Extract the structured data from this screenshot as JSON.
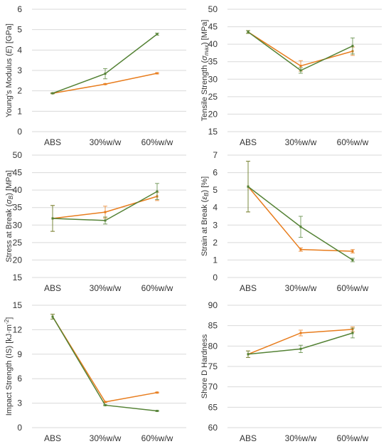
{
  "colors": {
    "series_a": "#e87d1e",
    "series_b": "#548235",
    "grid": "#d9d9d9",
    "text": "#333333"
  },
  "chart_data": [
    {
      "type": "line",
      "ylabel_main": "Young's Modulus (",
      "ylabel_italic": "E",
      "ylabel_end": ") [GPa]",
      "categories": [
        "ABS",
        "30%w/w",
        "60%w/w"
      ],
      "ylim": [
        0,
        6
      ],
      "yticks": [
        0,
        1,
        2,
        3,
        4,
        5,
        6
      ],
      "grid": true,
      "series": [
        {
          "color": "#e87d1e",
          "values": [
            1.88,
            2.33,
            2.86
          ],
          "errors": [
            0.02,
            0.02,
            0.03
          ]
        },
        {
          "color": "#548235",
          "values": [
            1.88,
            2.84,
            4.78
          ],
          "errors": [
            0.02,
            0.25,
            0.05
          ]
        }
      ]
    },
    {
      "type": "line",
      "ylabel_main": "Tensile Strength (",
      "ylabel_italic": "σ",
      "ylabel_sub": "max",
      "ylabel_end": ") [MPa]",
      "categories": [
        "ABS",
        "30%w/w",
        "60%w/w"
      ],
      "ylim": [
        15,
        50
      ],
      "yticks": [
        15,
        20,
        25,
        30,
        35,
        40,
        45,
        50
      ],
      "grid": true,
      "series": [
        {
          "color": "#e87d1e",
          "values": [
            43.5,
            33.8,
            38.0
          ],
          "errors": [
            0.4,
            1.5,
            1.2
          ]
        },
        {
          "color": "#548235",
          "values": [
            43.5,
            32.5,
            39.5
          ],
          "errors": [
            0.4,
            0.8,
            2.3
          ]
        }
      ]
    },
    {
      "type": "line",
      "ylabel_main": "Stress at Break (",
      "ylabel_italic": "σ",
      "ylabel_sub": "B",
      "ylabel_end": ") [MPa]",
      "categories": [
        "ABS",
        "30%w/w",
        "60%w/w"
      ],
      "ylim": [
        15,
        50
      ],
      "yticks": [
        15,
        20,
        25,
        30,
        35,
        40,
        45,
        50
      ],
      "grid": true,
      "series": [
        {
          "color": "#e87d1e",
          "values": [
            31.9,
            33.7,
            38.2
          ],
          "errors": [
            3.7,
            1.7,
            1.2
          ]
        },
        {
          "color": "#548235",
          "values": [
            31.9,
            31.3,
            39.6
          ],
          "errors": [
            3.7,
            1.0,
            2.3
          ]
        }
      ]
    },
    {
      "type": "line",
      "ylabel_main": "Strain at Break (",
      "ylabel_italic": "ε",
      "ylabel_sub": "B",
      "ylabel_end": ") [%]",
      "categories": [
        "ABS",
        "30%w/w",
        "60%w/w"
      ],
      "ylim": [
        0,
        7
      ],
      "yticks": [
        0,
        1,
        2,
        3,
        4,
        5,
        6,
        7
      ],
      "grid": true,
      "series": [
        {
          "color": "#e87d1e",
          "values": [
            5.2,
            1.6,
            1.5
          ],
          "errors": [
            1.45,
            0.1,
            0.1
          ]
        },
        {
          "color": "#548235",
          "values": [
            5.2,
            2.9,
            1.0
          ],
          "errors": [
            1.45,
            0.6,
            0.1
          ]
        }
      ]
    },
    {
      "type": "line",
      "ylabel_main": "Impact Strength (IS) [kJ·m",
      "ylabel_sup": "-2",
      "ylabel_end": "]",
      "categories": [
        "ABS",
        "30%w/w",
        "60%w/w"
      ],
      "ylim": [
        0,
        15
      ],
      "yticks": [
        0,
        3,
        6,
        9,
        12,
        15
      ],
      "grid": true,
      "series": [
        {
          "color": "#e87d1e",
          "values": [
            13.6,
            3.15,
            4.3
          ],
          "errors": [
            0.3,
            0.05,
            0.05
          ]
        },
        {
          "color": "#548235",
          "values": [
            13.6,
            2.75,
            2.05
          ],
          "errors": [
            0.3,
            0.05,
            0.05
          ]
        }
      ]
    },
    {
      "type": "line",
      "ylabel_main": "Shore D Hardness",
      "categories": [
        "ABS",
        "30%w/w",
        "60%w/w"
      ],
      "ylim": [
        60,
        90
      ],
      "yticks": [
        60,
        65,
        70,
        75,
        80,
        85,
        90
      ],
      "grid": true,
      "series": [
        {
          "color": "#e87d1e",
          "values": [
            78.0,
            83.2,
            84.1
          ],
          "errors": [
            0.8,
            0.7,
            0.6
          ]
        },
        {
          "color": "#548235",
          "values": [
            78.0,
            79.3,
            83.2
          ],
          "errors": [
            0.8,
            0.9,
            1.2
          ]
        }
      ]
    }
  ]
}
